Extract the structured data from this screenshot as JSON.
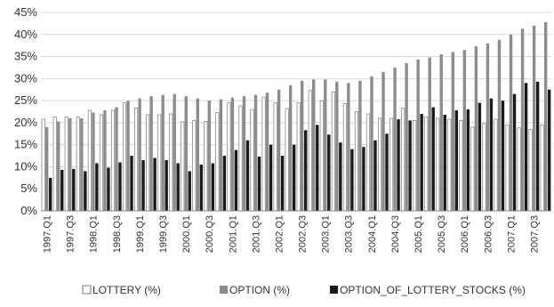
{
  "chart_data": {
    "type": "bar",
    "categories": [
      "1997.Q1",
      "1997.Q2",
      "1997.Q3",
      "1997.Q4",
      "1998.Q1",
      "1998.Q2",
      "1998.Q3",
      "1998.Q4",
      "1999.Q1",
      "1999.Q2",
      "1999.Q3",
      "1999.Q4",
      "2000.Q1",
      "2000.Q2",
      "2000.Q3",
      "2000.Q4",
      "2001.Q1",
      "2001.Q2",
      "2001.Q3",
      "2001.Q4",
      "2002.Q1",
      "2002.Q2",
      "2002.Q3",
      "2002.Q4",
      "2003.Q1",
      "2003.Q2",
      "2003.Q3",
      "2003.Q4",
      "2004.Q1",
      "2004.Q2",
      "2004.Q3",
      "2004.Q4",
      "2005.Q1",
      "2005.Q2",
      "2005.Q3",
      "2005.Q4",
      "2006.Q1",
      "2006.Q2",
      "2006.Q3",
      "2006.Q4",
      "2007.Q1",
      "2007.Q2",
      "2007.Q3",
      "2007.Q4"
    ],
    "tick_labels": [
      "1997.Q1",
      "1997.Q3",
      "1998.Q1",
      "1998.Q3",
      "1999.Q1",
      "1999.Q3",
      "2000.Q1",
      "2000.Q3",
      "2001.Q1",
      "2001.Q3",
      "2002.Q1",
      "2002.Q3",
      "2003.Q1",
      "2003.Q3",
      "2004.Q1",
      "2004.Q3",
      "2005.Q1",
      "2005.Q3",
      "2006.Q1",
      "2006.Q3",
      "2007.Q1",
      "2007.Q3"
    ],
    "series": [
      {
        "name": "LOTTERY (%)",
        "color": "#ffffff",
        "values": [
          20.8,
          21.3,
          21.3,
          21.3,
          22.8,
          21.8,
          22.8,
          24.5,
          23.3,
          21.8,
          21.8,
          22.0,
          20.2,
          20.5,
          20.3,
          22.3,
          24.5,
          23.8,
          23.0,
          25.8,
          24.5,
          23.2,
          24.5,
          27.3,
          25.0,
          27.0,
          24.3,
          22.5,
          22.0,
          21.0,
          21.0,
          23.3,
          20.5,
          21.3,
          21.0,
          20.8,
          20.5,
          19.0,
          19.8,
          20.8,
          19.5,
          18.8,
          18.5,
          19.5
        ]
      },
      {
        "name": "OPTION (%)",
        "color": "#8c8c8c",
        "values": [
          19.0,
          20.3,
          21.0,
          21.0,
          22.3,
          22.8,
          23.5,
          25.0,
          25.5,
          26.0,
          26.3,
          26.5,
          26.0,
          25.5,
          25.0,
          25.3,
          25.7,
          26.0,
          26.3,
          26.8,
          27.5,
          28.5,
          29.5,
          29.8,
          29.8,
          29.3,
          29.0,
          29.5,
          30.5,
          31.5,
          32.5,
          33.5,
          34.3,
          34.8,
          35.5,
          36.0,
          36.5,
          37.3,
          38.0,
          38.8,
          40.0,
          41.3,
          42.0,
          42.8
        ]
      },
      {
        "name": "OPTION_OF_LOTTERY_STOCKS (%)",
        "color": "#1a1a1a",
        "values": [
          7.5,
          9.3,
          9.5,
          9.0,
          10.8,
          9.8,
          11.0,
          12.5,
          11.5,
          12.0,
          11.5,
          10.8,
          9.0,
          10.5,
          10.8,
          12.5,
          13.8,
          16.0,
          12.3,
          15.0,
          12.5,
          15.0,
          18.3,
          19.5,
          17.3,
          15.5,
          14.0,
          14.5,
          16.0,
          17.5,
          20.8,
          20.5,
          22.0,
          23.5,
          21.8,
          22.8,
          23.0,
          24.5,
          25.5,
          25.0,
          26.5,
          29.0,
          29.3,
          27.5
        ]
      }
    ],
    "yticks": [
      "0%",
      "5%",
      "10%",
      "15%",
      "20%",
      "25%",
      "30%",
      "35%",
      "40%",
      "45%"
    ],
    "ylim": [
      0,
      45
    ],
    "grid": "horizontal",
    "legend": "bottom"
  }
}
